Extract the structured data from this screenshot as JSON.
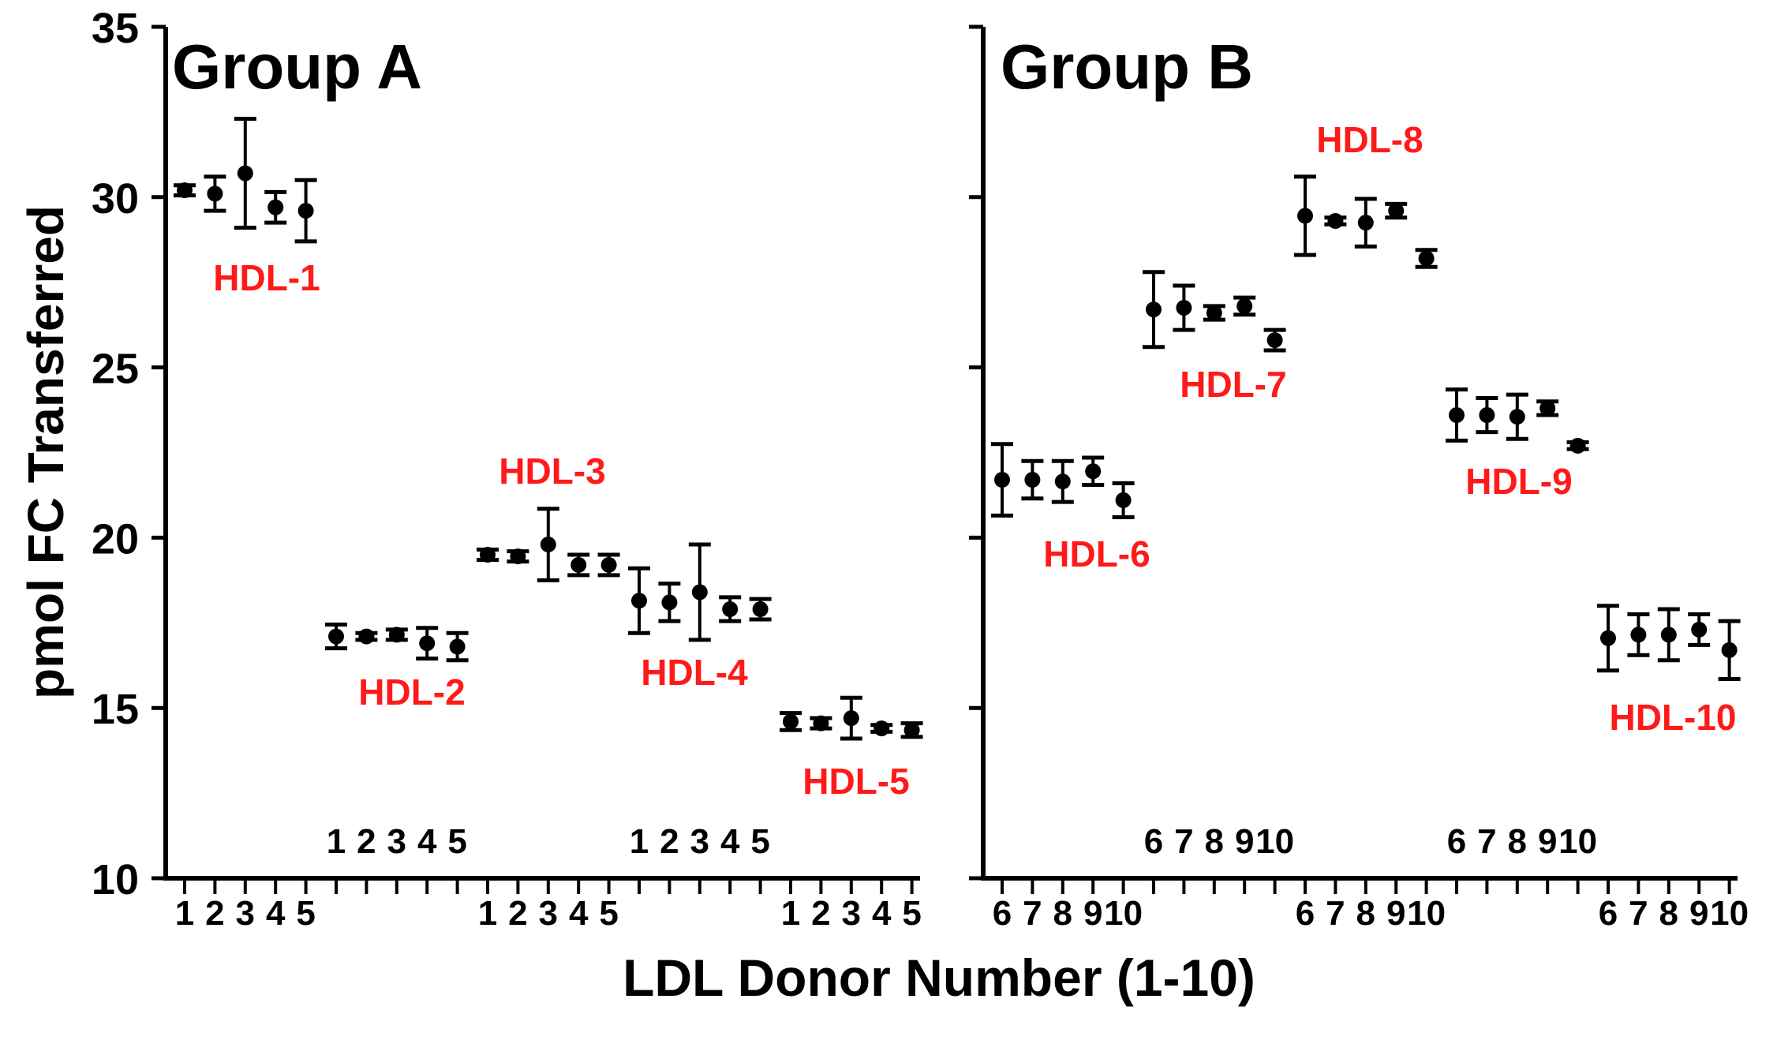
{
  "chart_data": {
    "type": "scatter",
    "ylabel": "pmol FC Transferred",
    "xlabel": "LDL Donor Number (1-10)",
    "ylim": [
      10,
      35
    ],
    "yticks": [
      10,
      15,
      20,
      25,
      30,
      35
    ],
    "grid": false,
    "colors": {
      "label": "#ff1a1a",
      "data": "#000000",
      "axis": "#000000"
    },
    "panels": [
      {
        "title": "Group A",
        "axis_ticks": [
          "1",
          "2",
          "3",
          "4",
          "5",
          "",
          "",
          "",
          "",
          "",
          "1",
          "2",
          "3",
          "4",
          "5",
          "",
          "",
          "",
          "",
          "",
          "1",
          "2",
          "3",
          "4",
          "5"
        ],
        "inner_ticks": [
          "1",
          "2",
          "3",
          "4",
          "5",
          "",
          "",
          "",
          "",
          "",
          "1",
          "2",
          "3",
          "4",
          "5"
        ],
        "series": [
          {
            "name": "HDL-1",
            "x": [
              "1",
              "2",
              "3",
              "4",
              "5"
            ],
            "values": [
              30.2,
              30.1,
              30.7,
              29.7,
              29.6
            ],
            "errors": [
              0.15,
              0.5,
              1.6,
              0.45,
              0.9
            ]
          },
          {
            "name": "HDL-2",
            "x": [
              "1",
              "2",
              "3",
              "4",
              "5"
            ],
            "values": [
              17.1,
              17.1,
              17.15,
              16.9,
              16.8
            ],
            "errors": [
              0.35,
              0.1,
              0.15,
              0.45,
              0.4
            ]
          },
          {
            "name": "HDL-3",
            "x": [
              "1",
              "2",
              "3",
              "4",
              "5"
            ],
            "values": [
              19.5,
              19.45,
              19.8,
              19.2,
              19.2
            ],
            "errors": [
              0.15,
              0.15,
              1.05,
              0.3,
              0.3
            ]
          },
          {
            "name": "HDL-4",
            "x": [
              "1",
              "2",
              "3",
              "4",
              "5"
            ],
            "values": [
              18.15,
              18.1,
              18.4,
              17.9,
              17.9
            ],
            "errors": [
              0.95,
              0.55,
              1.4,
              0.35,
              0.3
            ]
          },
          {
            "name": "HDL-5",
            "x": [
              "1",
              "2",
              "3",
              "4",
              "5"
            ],
            "values": [
              14.6,
              14.55,
              14.7,
              14.4,
              14.35
            ],
            "errors": [
              0.25,
              0.15,
              0.6,
              0.1,
              0.2
            ]
          }
        ]
      },
      {
        "title": "Group B",
        "axis_ticks": [
          "6",
          "7",
          "8",
          "9",
          "10",
          "",
          "",
          "",
          "",
          "",
          "6",
          "7",
          "8",
          "9",
          "10",
          "",
          "",
          "",
          "",
          "",
          "6",
          "7",
          "8",
          "9",
          "10"
        ],
        "inner_ticks": [
          "6",
          "7",
          "8",
          "9",
          "10",
          "",
          "",
          "",
          "",
          "",
          "6",
          "7",
          "8",
          "9",
          "10"
        ],
        "series": [
          {
            "name": "HDL-6",
            "x": [
              "6",
              "7",
              "8",
              "9",
              "10"
            ],
            "values": [
              21.7,
              21.7,
              21.65,
              21.95,
              21.1
            ],
            "errors": [
              1.05,
              0.55,
              0.6,
              0.4,
              0.5
            ]
          },
          {
            "name": "HDL-7",
            "x": [
              "6",
              "7",
              "8",
              "9",
              "10"
            ],
            "values": [
              26.7,
              26.75,
              26.6,
              26.8,
              25.8
            ],
            "errors": [
              1.1,
              0.65,
              0.2,
              0.25,
              0.3
            ]
          },
          {
            "name": "HDL-8",
            "x": [
              "6",
              "7",
              "8",
              "9",
              "10"
            ],
            "values": [
              29.45,
              29.3,
              29.25,
              29.6,
              28.2
            ],
            "errors": [
              1.15,
              0.1,
              0.7,
              0.2,
              0.25
            ]
          },
          {
            "name": "HDL-9",
            "x": [
              "6",
              "7",
              "8",
              "9",
              "10"
            ],
            "values": [
              23.6,
              23.6,
              23.55,
              23.8,
              22.7
            ],
            "errors": [
              0.75,
              0.5,
              0.65,
              0.2,
              0.1
            ]
          },
          {
            "name": "HDL-10",
            "x": [
              "6",
              "7",
              "8",
              "9",
              "10"
            ],
            "values": [
              17.05,
              17.15,
              17.15,
              17.3,
              16.7
            ],
            "errors": [
              0.95,
              0.6,
              0.75,
              0.45,
              0.85
            ]
          }
        ]
      }
    ]
  }
}
